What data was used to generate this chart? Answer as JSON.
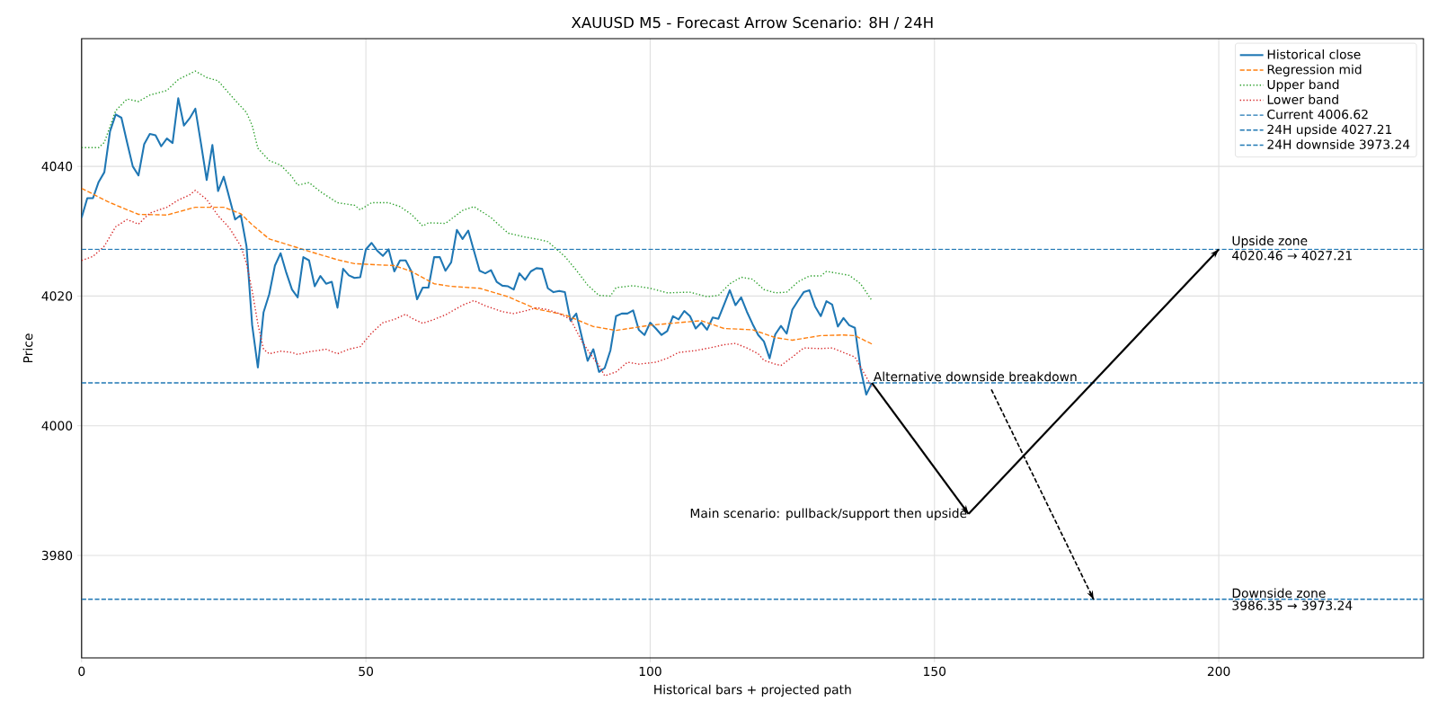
{
  "chart_data": {
    "type": "line",
    "title": "XAUUSD M5 - Forecast Arrow Scenario: 8H / 24H",
    "xlabel": "Historical bars + projected path",
    "ylabel": "Price",
    "xlim": [
      0,
      236
    ],
    "ylim": [
      3964.2,
      4059.7
    ],
    "xticks": [
      0,
      50,
      100,
      150,
      200
    ],
    "yticks": [
      3980,
      4000,
      4020,
      4040
    ],
    "grid": true,
    "legend": "top right",
    "series": [
      {
        "name": "Historical close",
        "color": "#1f77b4",
        "line_style": "solid",
        "x": [
          0,
          1,
          2,
          3,
          4,
          5,
          6,
          7,
          8,
          9,
          10,
          11,
          12,
          13,
          14,
          15,
          16,
          17,
          18,
          19,
          20,
          21,
          22,
          23,
          24,
          25,
          26,
          27,
          28,
          29,
          30,
          31,
          32,
          33,
          34,
          35,
          36,
          37,
          38,
          39,
          40,
          41,
          42,
          43,
          44,
          45,
          46,
          47,
          48,
          49,
          50,
          51,
          52,
          53,
          54,
          55,
          56,
          57,
          58,
          59,
          60,
          61,
          62,
          63,
          64,
          65,
          66,
          67,
          68,
          69,
          70,
          71,
          72,
          73,
          74,
          75,
          76,
          77,
          78,
          79,
          80,
          81,
          82,
          83,
          84,
          85,
          86,
          87,
          88,
          89,
          90,
          91,
          92,
          93,
          94,
          95,
          96,
          97,
          98,
          99,
          100,
          101,
          102,
          103,
          104,
          105,
          106,
          107,
          108,
          109,
          110,
          111,
          112,
          113,
          114,
          115,
          116,
          117,
          118,
          119,
          120,
          121,
          122,
          123,
          124,
          125,
          126,
          127,
          128,
          129,
          130,
          131,
          132,
          133,
          134,
          135,
          136,
          137,
          138,
          139
        ],
        "values": [
          4032.1,
          4035.1,
          4035.1,
          4037.6,
          4039.1,
          4045.4,
          4048.0,
          4047.5,
          4043.7,
          4040.0,
          4038.6,
          4043.4,
          4045.0,
          4044.8,
          4043.1,
          4044.3,
          4043.6,
          4050.5,
          4046.3,
          4047.4,
          4048.9,
          4043.5,
          4037.9,
          4043.3,
          4036.2,
          4038.4,
          4035.1,
          4031.8,
          4032.5,
          4027.7,
          4015.5,
          4009.0,
          4017.5,
          4020.3,
          4024.7,
          4026.6,
          4023.6,
          4021.0,
          4019.8,
          4026.0,
          4025.5,
          4021.5,
          4023.1,
          4021.9,
          4022.2,
          4018.2,
          4024.2,
          4023.2,
          4022.8,
          4022.9,
          4027.2,
          4028.2,
          4027.0,
          4026.2,
          4027.2,
          4023.8,
          4025.5,
          4025.5,
          4023.8,
          4019.5,
          4021.3,
          4021.3,
          4026.0,
          4026.0,
          4023.9,
          4025.2,
          4030.2,
          4028.8,
          4030.1,
          4027.0,
          4023.9,
          4023.5,
          4024.0,
          4022.2,
          4021.6,
          4021.5,
          4021.0,
          4023.5,
          4022.5,
          4023.8,
          4024.3,
          4024.2,
          4021.2,
          4020.6,
          4020.8,
          4020.6,
          4016.2,
          4017.3,
          4013.6,
          4010.0,
          4011.8,
          4008.3,
          4008.9,
          4011.6,
          4016.9,
          4017.3,
          4017.3,
          4017.8,
          4014.8,
          4014.0,
          4015.9,
          4015.0,
          4014.0,
          4014.6,
          4016.9,
          4016.4,
          4017.7,
          4016.9,
          4015.0,
          4015.9,
          4014.8,
          4016.7,
          4016.5,
          4018.7,
          4020.9,
          4018.6,
          4019.8,
          4017.6,
          4015.7,
          4014.0,
          4013.0,
          4010.4,
          4014.1,
          4015.4,
          4014.2,
          4017.9,
          4019.3,
          4020.6,
          4020.9,
          4018.4,
          4016.9,
          4019.2,
          4018.7,
          4015.3,
          4016.6,
          4015.5,
          4015.1,
          4008.8,
          4004.8,
          4006.6
        ]
      },
      {
        "name": "Regression mid",
        "color": "#ff7f0e",
        "line_style": "dashed",
        "x": [
          0,
          5,
          10,
          15,
          20,
          25,
          28,
          30,
          33,
          36,
          40,
          45,
          48,
          50,
          55,
          58,
          62,
          65,
          70,
          75,
          80,
          85,
          90,
          94,
          100,
          105,
          109,
          113,
          118,
          122,
          125,
          130,
          134,
          136,
          139
        ],
        "values": [
          4036.6,
          4034.4,
          4032.6,
          4032.5,
          4033.7,
          4033.7,
          4032.7,
          4031.0,
          4028.8,
          4028.0,
          4026.9,
          4025.6,
          4025.0,
          4024.9,
          4024.7,
          4023.8,
          4021.9,
          4021.5,
          4021.2,
          4019.9,
          4018.0,
          4017.1,
          4015.3,
          4014.7,
          4015.5,
          4015.9,
          4016.2,
          4015.0,
          4014.8,
          4013.6,
          4013.2,
          4013.9,
          4014.0,
          4013.9,
          4012.6
        ]
      },
      {
        "name": "Upper band",
        "color": "#2ca02c",
        "line_style": "dotted",
        "x": [
          0,
          3,
          4,
          6,
          8,
          10,
          12,
          15,
          17,
          20,
          22,
          24,
          27,
          29,
          30,
          31,
          33,
          35,
          37,
          38,
          40,
          42,
          45,
          48,
          49,
          51,
          54,
          56,
          58,
          60,
          61,
          64,
          67,
          69,
          72,
          75,
          78,
          80,
          82,
          85,
          87,
          89,
          91,
          93,
          94,
          97,
          100,
          103,
          107,
          110,
          112,
          114,
          116,
          118,
          120,
          122,
          124,
          126,
          128,
          130,
          131,
          133,
          135,
          137,
          139
        ],
        "values": [
          4042.9,
          4042.9,
          4043.7,
          4048.6,
          4050.4,
          4050.0,
          4051.0,
          4051.7,
          4053.4,
          4054.7,
          4053.7,
          4053.2,
          4050.2,
          4048.3,
          4046.3,
          4042.8,
          4040.9,
          4040.2,
          4038.4,
          4037.1,
          4037.5,
          4036.1,
          4034.4,
          4034.0,
          4033.3,
          4034.4,
          4034.4,
          4033.8,
          4032.6,
          4030.8,
          4031.3,
          4031.2,
          4033.2,
          4033.8,
          4032.1,
          4029.7,
          4029.1,
          4028.8,
          4028.4,
          4026.1,
          4024.0,
          4021.7,
          4020.1,
          4020.0,
          4021.3,
          4021.6,
          4021.2,
          4020.5,
          4020.6,
          4019.9,
          4020.1,
          4021.9,
          4022.9,
          4022.6,
          4021.0,
          4020.5,
          4020.6,
          4022.2,
          4023.1,
          4023.1,
          4023.8,
          4023.5,
          4023.2,
          4021.9,
          4019.3
        ]
      },
      {
        "name": "Lower band",
        "color": "#d62728",
        "line_style": "dotted",
        "x": [
          0,
          2,
          4,
          6,
          8,
          10,
          12,
          15,
          17,
          19,
          20,
          22,
          24,
          26,
          28,
          29,
          30,
          31,
          32,
          33,
          35,
          37,
          38,
          40,
          43,
          45,
          47,
          49,
          51,
          53,
          55,
          57,
          58,
          60,
          62,
          64,
          67,
          69,
          71,
          74,
          76,
          78,
          80,
          82,
          84,
          86,
          88,
          90,
          91,
          92,
          94,
          96,
          98,
          101,
          103,
          105,
          108,
          111,
          113,
          115,
          117,
          119,
          120,
          122,
          123,
          125,
          127,
          130,
          132,
          134,
          136,
          139
        ],
        "values": [
          4025.5,
          4026.1,
          4027.7,
          4030.7,
          4031.8,
          4031.1,
          4032.8,
          4033.7,
          4034.8,
          4035.6,
          4036.3,
          4034.9,
          4032.4,
          4030.5,
          4027.7,
          4025.0,
          4020.8,
          4015.7,
          4011.8,
          4011.1,
          4011.5,
          4011.3,
          4011.0,
          4011.4,
          4011.8,
          4011.1,
          4011.8,
          4012.2,
          4014.3,
          4015.9,
          4016.4,
          4017.2,
          4016.6,
          4015.8,
          4016.4,
          4017.1,
          4018.6,
          4019.3,
          4018.5,
          4017.6,
          4017.3,
          4017.7,
          4018.2,
          4017.9,
          4017.3,
          4016.4,
          4013.0,
          4010.4,
          4009.3,
          4007.7,
          4008.3,
          4009.8,
          4009.5,
          4009.8,
          4010.4,
          4011.3,
          4011.6,
          4012.1,
          4012.5,
          4012.7,
          4012.0,
          4011.1,
          4010.1,
          4009.5,
          4009.3,
          4010.6,
          4012.0,
          4011.9,
          4012.0,
          4011.3,
          4010.6,
          4006.0
        ]
      },
      {
        "color": "#000000",
        "line_style": "solid",
        "x": [
          139,
          156
        ],
        "values": [
          4006.6,
          3986.4
        ]
      },
      {
        "color": "#000000",
        "line_style": "solid",
        "x": [
          156,
          200
        ],
        "values": [
          3986.4,
          4027.2
        ]
      },
      {
        "color": "#000000",
        "line_style": "dashed",
        "x": [
          160,
          178
        ],
        "values": [
          4005.6,
          3973.2
        ]
      }
    ],
    "ref_lines": [
      {
        "axis": "y",
        "value": 4006.62,
        "label": "Current 4006.62",
        "color": "#1f77b4",
        "line_style": "dashed"
      },
      {
        "axis": "y",
        "value": 4027.21,
        "label": "24H upside 4027.21",
        "color": "#1f77b4",
        "line_style": "dashed"
      },
      {
        "axis": "y",
        "value": 3973.24,
        "label": "24H downside 3973.24",
        "color": "#1f77b4",
        "line_style": "dashed"
      }
    ],
    "annotations": [
      {
        "text": "Alternative downside breakdown",
        "x": 139,
        "y": 4006.62
      },
      {
        "text": "Main scenario: pullback/support then upside",
        "x": 156,
        "y": 3986.35
      },
      {
        "text": "Upside zone",
        "x": 202,
        "y": 4027.21
      },
      {
        "text": "4020.46 → 4027.21",
        "x": 202,
        "y": 4027.21
      },
      {
        "text": "Downside zone",
        "x": 202,
        "y": 3973.24
      },
      {
        "text": "3986.35 → 3973.24",
        "x": 202,
        "y": 3973.24
      }
    ]
  }
}
